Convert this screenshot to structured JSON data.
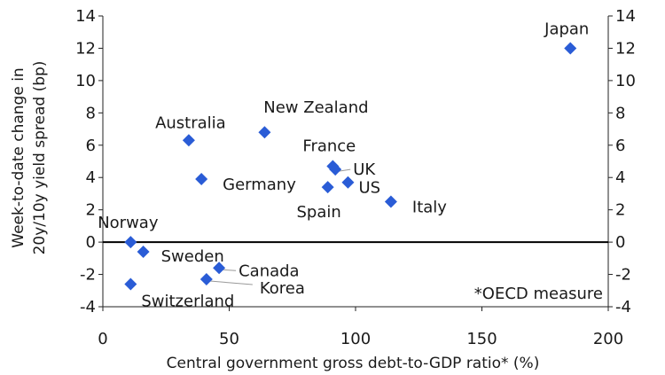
{
  "chart_data": {
    "type": "scatter",
    "xlabel": "Central government gross debt-to-GDP ratio* (%)",
    "ylabel_lines": [
      "Week-to-date change in",
      "20y/10y yield spread (bp)"
    ],
    "xlim": [
      0,
      200
    ],
    "ylim": [
      -4,
      14
    ],
    "xticks": [
      0,
      50,
      100,
      150,
      200
    ],
    "yticks": [
      -4,
      -2,
      0,
      2,
      4,
      6,
      8,
      10,
      12,
      14
    ],
    "annotation": "*OECD measure",
    "marker": "diamond",
    "marker_color": "#2a5cd6",
    "points": [
      {
        "label": "Japan",
        "x": 185,
        "y": 12.0
      },
      {
        "label": "New Zealand",
        "x": 64,
        "y": 6.8
      },
      {
        "label": "Australia",
        "x": 34,
        "y": 6.3
      },
      {
        "label": "France",
        "x": 91,
        "y": 4.7
      },
      {
        "label": "UK",
        "x": 92,
        "y": 4.5
      },
      {
        "label": "Germany",
        "x": 39,
        "y": 3.9
      },
      {
        "label": "US",
        "x": 97,
        "y": 3.7
      },
      {
        "label": "Spain",
        "x": 89,
        "y": 3.4
      },
      {
        "label": "Italy",
        "x": 114,
        "y": 2.5
      },
      {
        "label": "Norway",
        "x": 11,
        "y": 0.0
      },
      {
        "label": "Sweden",
        "x": 16,
        "y": -0.6
      },
      {
        "label": "Canada",
        "x": 46,
        "y": -1.6
      },
      {
        "label": "Korea",
        "x": 41,
        "y": -2.3
      },
      {
        "label": "Switzerland",
        "x": 11,
        "y": -2.6
      }
    ]
  }
}
